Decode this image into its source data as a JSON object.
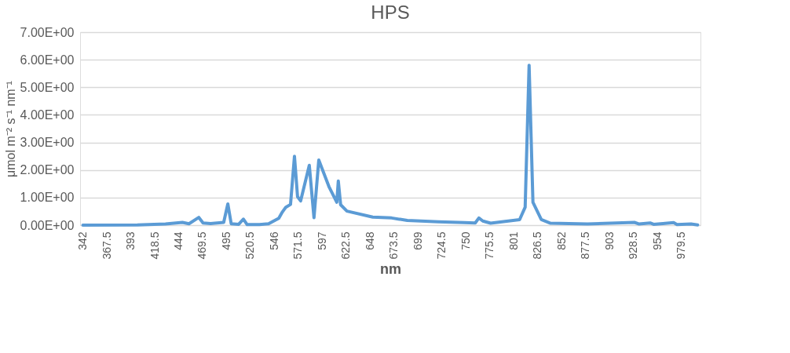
{
  "chart_data": {
    "type": "line",
    "title": "HPS",
    "xlabel": "nm",
    "ylabel": "μmol m⁻² s⁻¹ nm⁻¹",
    "x": [
      342,
      400,
      430,
      448,
      455,
      465.5,
      470,
      478,
      492,
      496.4,
      500,
      508,
      513,
      517,
      530,
      539.8,
      550.7,
      554,
      558.2,
      563.2,
      567.4,
      570.7,
      574,
      583.2,
      588.2,
      593.3,
      604.1,
      612.5,
      614.1,
      616.6,
      623.3,
      650.8,
      670.9,
      687.6,
      721,
      748.6,
      760,
      763.9,
      768.1,
      776.4,
      807.3,
      813.2,
      817.4,
      821.5,
      830.4,
      840.2,
      879.6,
      929.6,
      934.7,
      946.3,
      950,
      960,
      971.4,
      975,
      990,
      997
    ],
    "series": [
      {
        "color": "#5b9bd5",
        "values": [
          0.0,
          0.01,
          0.04,
          0.1,
          0.05,
          0.28,
          0.08,
          0.06,
          0.1,
          0.77,
          0.05,
          0.03,
          0.22,
          0.02,
          0.02,
          0.05,
          0.25,
          0.45,
          0.65,
          0.75,
          2.5,
          1.03,
          0.88,
          2.17,
          0.27,
          2.36,
          1.4,
          0.83,
          1.6,
          0.74,
          0.51,
          0.29,
          0.26,
          0.17,
          0.12,
          0.09,
          0.08,
          0.26,
          0.15,
          0.07,
          0.2,
          0.65,
          5.8,
          0.83,
          0.2,
          0.07,
          0.04,
          0.1,
          0.04,
          0.08,
          0.03,
          0.06,
          0.09,
          0.02,
          0.04,
          0.01
        ]
      }
    ],
    "xlim": [
      339,
      1000
    ],
    "xticks": [
      342,
      367.5,
      393,
      418.5,
      444,
      469.5,
      495,
      520.5,
      546,
      571.5,
      597,
      622.5,
      648,
      673.5,
      699,
      724.5,
      750,
      775.5,
      801,
      826.5,
      852,
      877.5,
      903,
      928.5,
      954,
      979.5
    ],
    "ylim": [
      0,
      7
    ],
    "yticks": [
      {
        "value": 0,
        "label": "0.00E+00"
      },
      {
        "value": 1,
        "label": "1.00E+00"
      },
      {
        "value": 2,
        "label": "2.00E+00"
      },
      {
        "value": 3,
        "label": "3.00E+00"
      },
      {
        "value": 4,
        "label": "4.00E+00"
      },
      {
        "value": 5,
        "label": "5.00E+00"
      },
      {
        "value": 6,
        "label": "6.00E+00"
      },
      {
        "value": 7,
        "label": "7.00E+00"
      }
    ],
    "grid": "y",
    "legend": false,
    "marker": "none",
    "line_style": "solid"
  }
}
